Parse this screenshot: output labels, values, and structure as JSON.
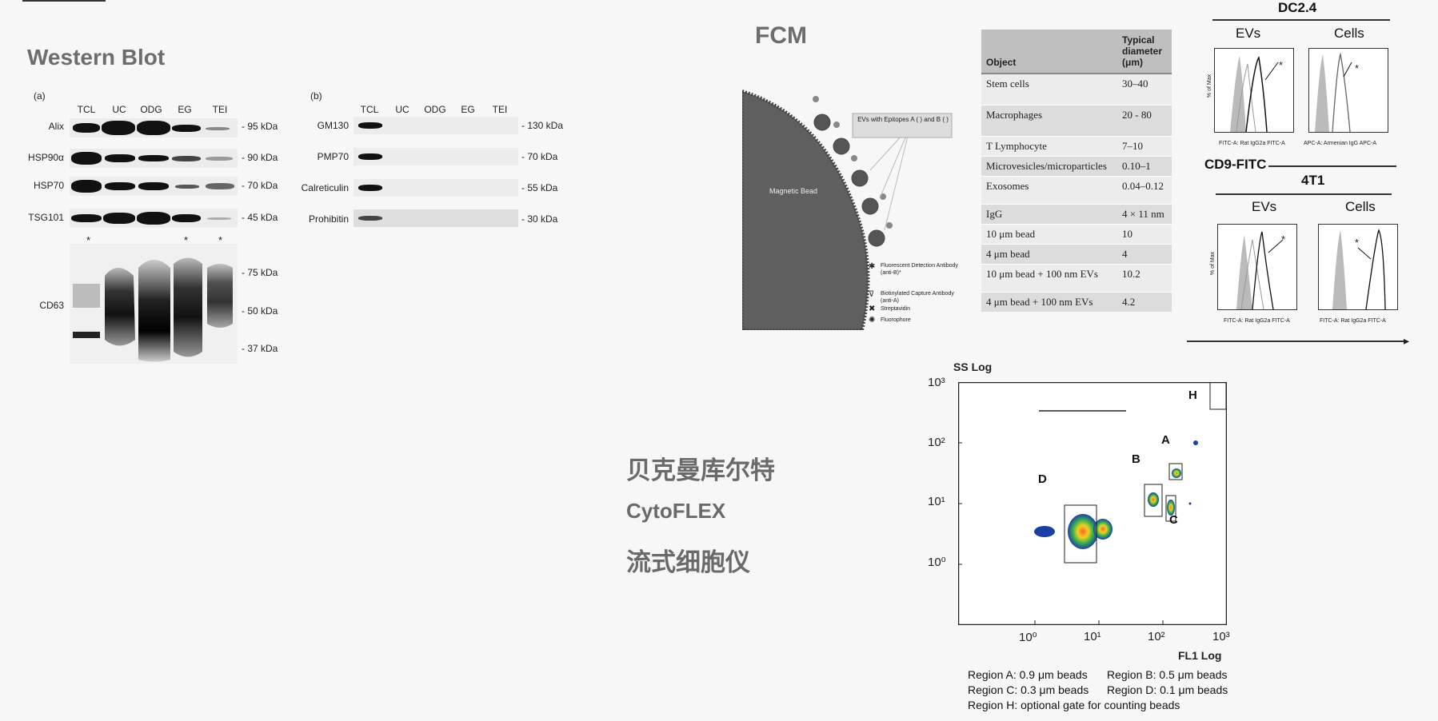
{
  "western_blot": {
    "title": "Western Blot",
    "panel_a": {
      "label": "(a)",
      "lanes": [
        "TCL",
        "UC",
        "ODG",
        "EG",
        "TEI"
      ],
      "rows": [
        {
          "name": "Alix",
          "kda": "- 95 kDa"
        },
        {
          "name": "HSP90α",
          "kda": "- 90 kDa"
        },
        {
          "name": "HSP70",
          "kda": "- 70 kDa"
        },
        {
          "name": "TSG101",
          "kda": "- 45 kDa"
        }
      ],
      "cd63": {
        "name": "CD63",
        "markers": [
          "- 75 kDa",
          "- 50 kDa",
          "- 37 kDa"
        ],
        "star": "*"
      }
    },
    "panel_b": {
      "label": "(b)",
      "lanes": [
        "TCL",
        "UC",
        "ODG",
        "EG",
        "TEI"
      ],
      "rows": [
        {
          "name": "GM130",
          "kda": "- 130 kDa"
        },
        {
          "name": "PMP70",
          "kda": "- 70 kDa"
        },
        {
          "name": "Calreticulin",
          "kda": "- 55 kDa"
        },
        {
          "name": "Prohibitin",
          "kda": "- 30 kDa"
        }
      ]
    }
  },
  "fcm": {
    "title": "FCM",
    "diagram": {
      "bead_label": "Magnetic Bead",
      "callout": "EVs with Epitopes A ( ) and B ( )",
      "legend": [
        "Fluorescent Detection Antibody (anti-B)*",
        "Biotinylated Capture Antibody (anti-A)",
        "Streptavidin",
        "Fluorophore"
      ]
    }
  },
  "size_table": {
    "headers": [
      "Object",
      "Typical diameter (μm)"
    ],
    "rows": [
      [
        "Stem cells",
        "30–40"
      ],
      [
        "Macrophages",
        "20 - 80"
      ],
      [
        "T Lymphocyte",
        "7–10"
      ],
      [
        "Microvesicles/microparticles",
        "0.10–1"
      ],
      [
        "Exosomes",
        "0.04–0.12"
      ],
      [
        "IgG",
        "4 × 11 nm"
      ],
      [
        "10 μm bead",
        "10"
      ],
      [
        "4 μm bead",
        "4"
      ],
      [
        "10 μm bead + 100 nm EVs",
        "10.2"
      ],
      [
        "4 μm bead + 100 nm EVs",
        "4.2"
      ]
    ]
  },
  "histograms": {
    "group1": {
      "title": "DC2.4",
      "left": "EVs",
      "right": "Cells",
      "left_x": "FITC-A: Rat IgG2a FITC-A",
      "right_x": "APC-A: Armenian IgG APC-A"
    },
    "mid_label": "CD9-FITC",
    "group2": {
      "title": "4T1",
      "left": "EVs",
      "right": "Cells",
      "left_x": "FITC-A: Rat IgG2a FITC-A",
      "right_x": "FITC-A: Rat IgG2a FITC-A"
    },
    "y_label": "% of Max",
    "star": "*"
  },
  "chinese_block": {
    "line1": "贝克曼库尔特",
    "line2": "CytoFLEX",
    "line3": "流式细胞仪"
  },
  "dot_plot": {
    "y_title": "SS Log",
    "x_title": "FL1 Log",
    "y_ticks": [
      "10³",
      "10²",
      "10¹",
      "10⁰"
    ],
    "x_ticks": [
      "10⁰",
      "10¹",
      "10²",
      "10³"
    ],
    "gates": [
      "A",
      "B",
      "C",
      "D",
      "H"
    ],
    "legend": [
      [
        "Region A: 0.9 μm beads",
        "Region B: 0.5 μm beads"
      ],
      [
        "Region C: 0.3 μm beads",
        "Region D: 0.1 μm beads"
      ],
      [
        "Region H: optional gate for counting beads",
        ""
      ]
    ]
  }
}
